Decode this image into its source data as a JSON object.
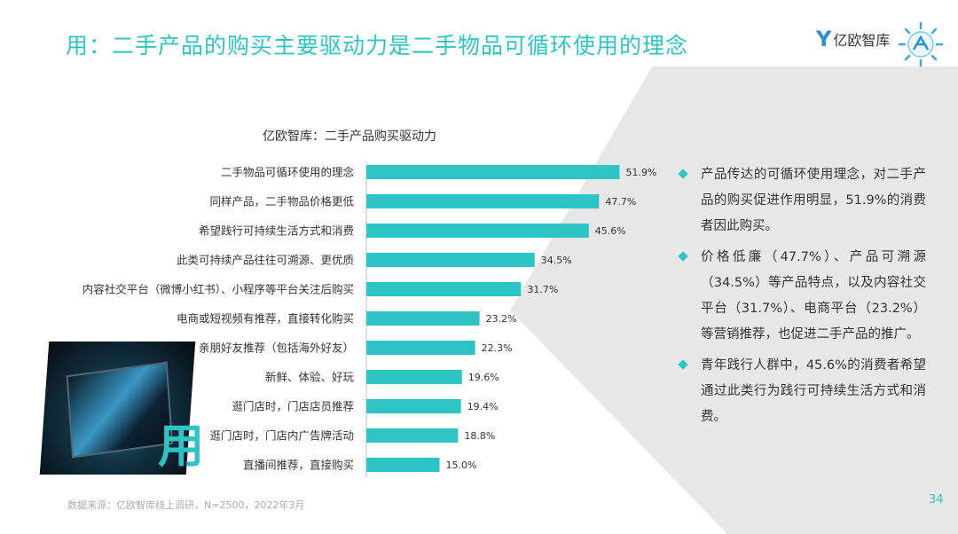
{
  "page": {
    "title": "用：二手产品的购买主要驱动力是二手物品可循环使用的理念",
    "logo_text": "亿欧智库",
    "page_number": "34",
    "source": "数据来源：亿欧智库线上调研，N=2500，2022年3月",
    "big_char": "用",
    "accent_color": "#2ec4c6"
  },
  "chart_data": {
    "type": "bar",
    "orientation": "horizontal",
    "title": "亿欧智库：二手产品购买驱动力",
    "categories": [
      "二手物品可循环使用的理念",
      "同样产品，二手物品价格更低",
      "希望践行可持续生活方式和消费",
      "此类可持续产品往往可溯源、更优质",
      "内容社交平台（微博小红书）、小程序等平台关注后购买",
      "电商或短视频有推荐，直接转化购买",
      "亲朋好友推荐（包括海外好友）",
      "新鲜、体验、好玩",
      "逛门店时，门店店员推荐",
      "逛门店时，门店内广告牌活动",
      "直播间推荐，直接购买"
    ],
    "values": [
      51.9,
      47.7,
      45.6,
      34.5,
      31.7,
      23.2,
      22.3,
      19.6,
      19.4,
      18.8,
      15.0
    ],
    "value_labels": [
      "51.9%",
      "47.7%",
      "45.6%",
      "34.5%",
      "31.7%",
      "23.2%",
      "22.3%",
      "19.6%",
      "19.4%",
      "18.8%",
      "15.0%"
    ],
    "unit": "%",
    "color": "#2ec4c6",
    "xlim": [
      0,
      60
    ]
  },
  "bullets": [
    "产品传达的可循环使用理念，对二手产品的购买促进作用明显，51.9%的消费者因此购买。",
    "价格低廉（47.7%）、产品可溯源（34.5%）等产品特点，以及内容社交平台（31.7%）、电商平台（23.2%）等营销推荐，也促进二手产品的推广。",
    "青年践行人群中，45.6%的消费者希望通过此类行为践行可持续生活方式和消费。"
  ]
}
